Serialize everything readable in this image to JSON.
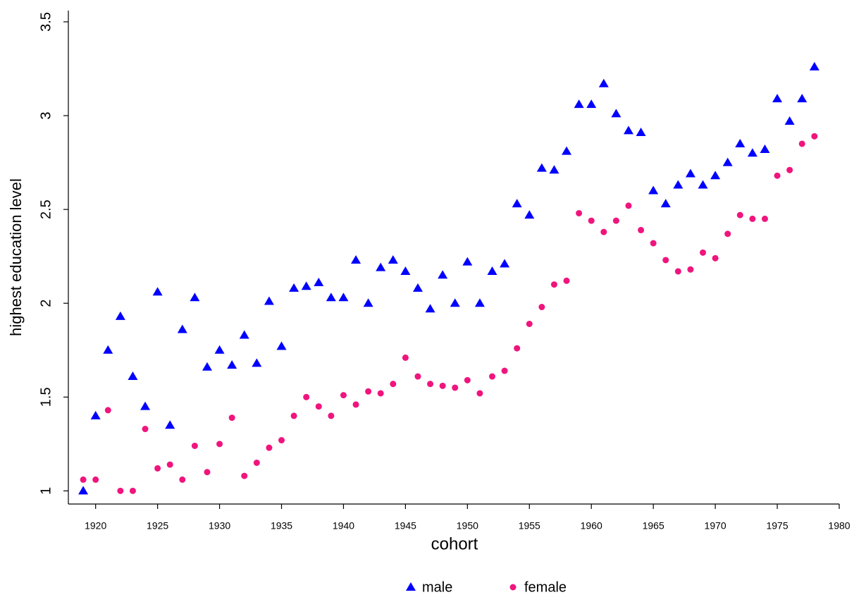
{
  "chart_data": {
    "type": "scatter",
    "x_label": "cohort",
    "y_label": "highest education level",
    "x": [
      1919,
      1920,
      1921,
      1922,
      1923,
      1924,
      1925,
      1926,
      1927,
      1928,
      1929,
      1930,
      1931,
      1932,
      1933,
      1934,
      1935,
      1936,
      1937,
      1938,
      1939,
      1940,
      1941,
      1942,
      1943,
      1944,
      1945,
      1946,
      1947,
      1948,
      1949,
      1950,
      1951,
      1952,
      1953,
      1954,
      1955,
      1956,
      1957,
      1958,
      1959,
      1960,
      1961,
      1962,
      1963,
      1964,
      1965,
      1966,
      1967,
      1968,
      1969,
      1970,
      1971,
      1972,
      1973,
      1974,
      1975,
      1976,
      1977,
      1978
    ],
    "series": [
      {
        "name": "male",
        "color": "#0000ff",
        "marker": "triangle",
        "values": [
          1.0,
          1.4,
          1.75,
          1.93,
          1.61,
          1.45,
          2.06,
          1.35,
          1.86,
          2.03,
          1.66,
          1.75,
          1.67,
          1.83,
          1.68,
          2.01,
          1.77,
          2.08,
          2.09,
          2.11,
          2.03,
          2.03,
          2.23,
          2.0,
          2.19,
          2.23,
          2.17,
          2.08,
          1.97,
          2.15,
          2.0,
          2.22,
          2.0,
          2.17,
          2.21,
          2.53,
          2.47,
          2.72,
          2.71,
          2.81,
          3.06,
          3.06,
          3.17,
          3.01,
          2.92,
          2.91,
          2.6,
          2.53,
          2.63,
          2.69,
          2.63,
          2.68,
          2.75,
          2.85,
          2.8,
          2.82,
          3.09,
          2.97,
          3.09,
          3.26
        ]
      },
      {
        "name": "female",
        "color": "#f0147d",
        "marker": "circle",
        "values": [
          1.06,
          1.06,
          1.43,
          1.0,
          1.0,
          1.33,
          1.12,
          1.14,
          1.06,
          1.24,
          1.1,
          1.25,
          1.39,
          1.08,
          1.15,
          1.23,
          1.27,
          1.4,
          1.5,
          1.45,
          1.4,
          1.51,
          1.46,
          1.53,
          1.52,
          1.57,
          1.71,
          1.61,
          1.57,
          1.56,
          1.55,
          1.59,
          1.52,
          1.61,
          1.64,
          1.76,
          1.89,
          1.98,
          2.1,
          2.12,
          2.48,
          2.44,
          2.38,
          2.44,
          2.52,
          2.39,
          2.32,
          2.23,
          2.17,
          2.18,
          2.27,
          2.24,
          2.37,
          2.47,
          2.45,
          2.45,
          2.68,
          2.71,
          2.85,
          2.89
        ]
      }
    ],
    "xlim": [
      1917.8,
      1980
    ],
    "ylim": [
      0.93,
      3.56
    ],
    "xticks": [
      1920,
      1925,
      1930,
      1935,
      1940,
      1945,
      1950,
      1955,
      1960,
      1965,
      1970,
      1975,
      1980
    ],
    "yticks": [
      1,
      1.5,
      2,
      2.5,
      3,
      3.5
    ],
    "grid": false,
    "legend": "bottom"
  }
}
